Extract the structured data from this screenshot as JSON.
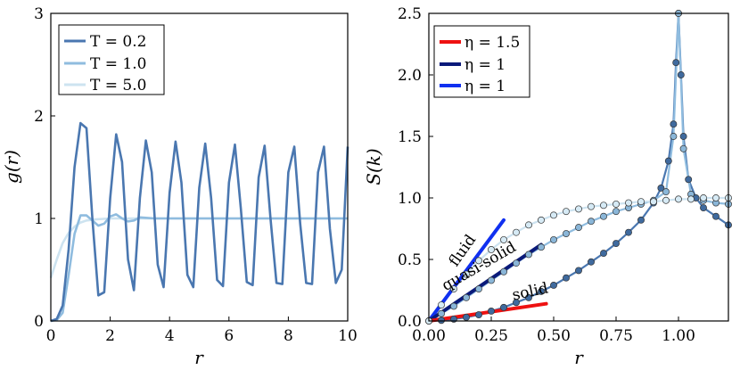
{
  "chart_data": [
    {
      "type": "line",
      "xlabel": "r",
      "ylabel": "g(r)",
      "xlim": [
        0,
        10
      ],
      "ylim": [
        0,
        3
      ],
      "xticks": [
        0,
        2,
        4,
        6,
        8,
        10
      ],
      "yticks": [
        0,
        1,
        2,
        3
      ],
      "xtick_labels": [
        "0",
        "2",
        "4",
        "6",
        "8",
        "10"
      ],
      "ytick_labels": [
        "0",
        "1",
        "2",
        "3"
      ],
      "legend_position": "top-left",
      "series": [
        {
          "name": "T = 0.2",
          "legend_label": "T = 0.2",
          "color": "#4a77b0",
          "x": [
            0.0,
            0.2,
            0.4,
            0.6,
            0.8,
            1.0,
            1.2,
            1.4,
            1.6,
            1.8,
            2.0,
            2.2,
            2.4,
            2.6,
            2.8,
            3.0,
            3.2,
            3.4,
            3.6,
            3.8,
            4.0,
            4.2,
            4.4,
            4.6,
            4.8,
            5.0,
            5.2,
            5.4,
            5.6,
            5.8,
            6.0,
            6.2,
            6.4,
            6.6,
            6.8,
            7.0,
            7.2,
            7.4,
            7.6,
            7.8,
            8.0,
            8.2,
            8.4,
            8.6,
            8.8,
            9.0,
            9.2,
            9.4,
            9.6,
            9.8,
            10.0
          ],
          "y": [
            0.0,
            0.02,
            0.15,
            0.7,
            1.5,
            1.93,
            1.88,
            1.0,
            0.25,
            0.28,
            1.2,
            1.82,
            1.55,
            0.6,
            0.3,
            1.2,
            1.76,
            1.45,
            0.55,
            0.33,
            1.25,
            1.75,
            1.35,
            0.45,
            0.33,
            1.3,
            1.73,
            1.2,
            0.4,
            0.34,
            1.35,
            1.72,
            1.1,
            0.38,
            0.35,
            1.4,
            1.71,
            1.0,
            0.37,
            0.36,
            1.45,
            1.7,
            0.95,
            0.37,
            0.36,
            1.45,
            1.7,
            0.9,
            0.37,
            0.5,
            1.7
          ]
        },
        {
          "name": "T = 1.0",
          "legend_label": "T = 1.0",
          "color": "#8fbcdf",
          "x": [
            0.0,
            0.2,
            0.4,
            0.6,
            0.8,
            1.0,
            1.2,
            1.4,
            1.6,
            1.8,
            2.0,
            2.2,
            2.4,
            2.6,
            2.8,
            3.0,
            3.5,
            4.0,
            4.5,
            5.0,
            6.0,
            7.0,
            8.0,
            9.0,
            10.0
          ],
          "y": [
            0.0,
            0.01,
            0.08,
            0.45,
            0.85,
            1.03,
            1.03,
            0.98,
            0.93,
            0.95,
            1.02,
            1.04,
            1.0,
            0.97,
            0.98,
            1.01,
            1.0,
            1.0,
            1.0,
            1.0,
            1.0,
            1.0,
            1.0,
            1.0,
            1.0
          ]
        },
        {
          "name": "T = 5.0",
          "legend_label": "T = 5.0",
          "color": "#cde3f0",
          "x": [
            0.0,
            0.2,
            0.4,
            0.6,
            0.8,
            1.0,
            1.2,
            1.5,
            2.0,
            2.5,
            3.0,
            4.0,
            5.0,
            6.0,
            7.0,
            8.0,
            9.0,
            10.0
          ],
          "y": [
            0.42,
            0.6,
            0.76,
            0.86,
            0.92,
            0.96,
            0.98,
            0.99,
            1.0,
            1.0,
            1.0,
            1.0,
            1.0,
            1.0,
            1.0,
            1.0,
            1.0,
            1.0
          ]
        }
      ]
    },
    {
      "type": "scatter",
      "xlabel": "r",
      "ylabel": "S(k)",
      "xlim": [
        0,
        1.2
      ],
      "ylim": [
        0,
        2.5
      ],
      "xticks": [
        0.0,
        0.25,
        0.5,
        0.75,
        1.0
      ],
      "yticks": [
        0.0,
        0.5,
        1.0,
        1.5,
        2.0,
        2.5
      ],
      "xtick_labels": [
        "0.00",
        "0.25",
        "0.50",
        "0.75",
        "1.00"
      ],
      "ytick_labels": [
        "0.0",
        "0.5",
        "1.0",
        "1.5",
        "2.0",
        "2.5"
      ],
      "legend_position": "top-left",
      "legend": [
        {
          "label": "η = 1.5",
          "color": "#ee1111"
        },
        {
          "label": "η = 1",
          "color": "#0a1a7a"
        },
        {
          "label": "η = 1",
          "color": "#1030f0"
        }
      ],
      "series": [
        {
          "name": "solid",
          "marker_color": "#3f6a9e",
          "line_color": "#4a77b0",
          "x": [
            0.0,
            0.05,
            0.1,
            0.15,
            0.2,
            0.25,
            0.3,
            0.35,
            0.4,
            0.45,
            0.5,
            0.55,
            0.6,
            0.65,
            0.7,
            0.75,
            0.8,
            0.85,
            0.9,
            0.93,
            0.96,
            0.98,
            0.99,
            1.0,
            1.01,
            1.02,
            1.04,
            1.07,
            1.1,
            1.15,
            1.2
          ],
          "y": [
            0.0,
            0.005,
            0.015,
            0.03,
            0.05,
            0.08,
            0.11,
            0.15,
            0.19,
            0.24,
            0.29,
            0.35,
            0.41,
            0.48,
            0.55,
            0.63,
            0.72,
            0.82,
            0.96,
            1.08,
            1.3,
            1.6,
            2.1,
            2.5,
            2.0,
            1.5,
            1.15,
            1.0,
            0.92,
            0.85,
            0.78
          ]
        },
        {
          "name": "quasi-solid",
          "marker_color": "#8ab6d8",
          "line_color": "#8fbcdf",
          "x": [
            0.0,
            0.05,
            0.1,
            0.15,
            0.2,
            0.25,
            0.3,
            0.35,
            0.4,
            0.45,
            0.5,
            0.55,
            0.6,
            0.65,
            0.7,
            0.75,
            0.8,
            0.85,
            0.9,
            0.95,
            0.98,
            1.0,
            1.02,
            1.05,
            1.1,
            1.15,
            1.2
          ],
          "y": [
            0.0,
            0.06,
            0.12,
            0.19,
            0.26,
            0.33,
            0.4,
            0.47,
            0.54,
            0.6,
            0.66,
            0.71,
            0.76,
            0.81,
            0.85,
            0.89,
            0.92,
            0.95,
            0.98,
            1.05,
            1.5,
            2.5,
            1.4,
            1.03,
            0.98,
            0.96,
            0.95
          ]
        },
        {
          "name": "fluid",
          "marker_color": "#d6eaf5",
          "line_color": "#cde3f0",
          "x": [
            0.0,
            0.05,
            0.1,
            0.15,
            0.2,
            0.25,
            0.3,
            0.35,
            0.4,
            0.45,
            0.5,
            0.55,
            0.6,
            0.65,
            0.7,
            0.75,
            0.8,
            0.85,
            0.9,
            0.95,
            1.0,
            1.05,
            1.1,
            1.15,
            1.2
          ],
          "y": [
            0.0,
            0.13,
            0.26,
            0.38,
            0.49,
            0.58,
            0.66,
            0.72,
            0.78,
            0.82,
            0.86,
            0.89,
            0.91,
            0.93,
            0.94,
            0.95,
            0.96,
            0.97,
            0.97,
            0.98,
            0.99,
            0.99,
            1.0,
            1.0,
            1.0
          ]
        }
      ],
      "fit_lines": [
        {
          "name": "fluid-fit",
          "color": "#1030f0",
          "x": [
            0.0,
            0.3
          ],
          "y": [
            0.0,
            0.82
          ]
        },
        {
          "name": "quasi-solid-fit",
          "color": "#0a1a7a",
          "x": [
            0.0,
            0.45
          ],
          "y": [
            0.0,
            0.62
          ]
        },
        {
          "name": "solid-fit",
          "color": "#ee1111",
          "x": [
            0.0,
            0.47
          ],
          "y": [
            0.0,
            0.14
          ]
        }
      ],
      "annotations": [
        {
          "text": "fluid",
          "color": "#1030f0",
          "x": 0.15,
          "y": 0.55
        },
        {
          "text": "quasi-solid",
          "color": "#0a1a7a",
          "x": 0.21,
          "y": 0.41
        },
        {
          "text": "solid",
          "color": "#ee1111",
          "x": 0.41,
          "y": 0.2
        }
      ]
    }
  ]
}
